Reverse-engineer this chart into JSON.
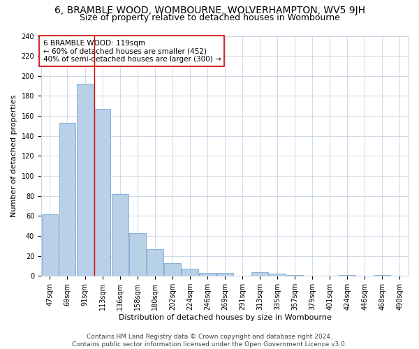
{
  "title": "6, BRAMBLE WOOD, WOMBOURNE, WOLVERHAMPTON, WV5 9JH",
  "subtitle": "Size of property relative to detached houses in Wombourne",
  "xlabel": "Distribution of detached houses by size in Wombourne",
  "ylabel": "Number of detached properties",
  "footer_line1": "Contains HM Land Registry data © Crown copyright and database right 2024.",
  "footer_line2": "Contains public sector information licensed under the Open Government Licence v3.0.",
  "categories": [
    "47sqm",
    "69sqm",
    "91sqm",
    "113sqm",
    "136sqm",
    "158sqm",
    "180sqm",
    "202sqm",
    "224sqm",
    "246sqm",
    "269sqm",
    "291sqm",
    "313sqm",
    "335sqm",
    "357sqm",
    "379sqm",
    "401sqm",
    "424sqm",
    "446sqm",
    "468sqm",
    "490sqm"
  ],
  "values": [
    62,
    153,
    192,
    167,
    82,
    43,
    27,
    13,
    7,
    3,
    3,
    0,
    4,
    2,
    1,
    0,
    0,
    1,
    0,
    1,
    0
  ],
  "bar_color": "#b8d0e8",
  "bar_edge_color": "#6699cc",
  "grid_color": "#c8d4e4",
  "annotation_box_color": "#ffffff",
  "annotation_border_color": "#cc0000",
  "vline_color": "#cc0000",
  "property_label": "6 BRAMBLE WOOD: 119sqm",
  "annotation_line2": "← 60% of detached houses are smaller (452)",
  "annotation_line3": "40% of semi-detached houses are larger (300) →",
  "vline_pos": 2.55,
  "ylim": [
    0,
    240
  ],
  "yticks": [
    0,
    20,
    40,
    60,
    80,
    100,
    120,
    140,
    160,
    180,
    200,
    220,
    240
  ],
  "title_fontsize": 10,
  "subtitle_fontsize": 9,
  "axis_label_fontsize": 8,
  "tick_fontsize": 7,
  "annotation_fontsize": 7.5,
  "footer_fontsize": 6.5
}
